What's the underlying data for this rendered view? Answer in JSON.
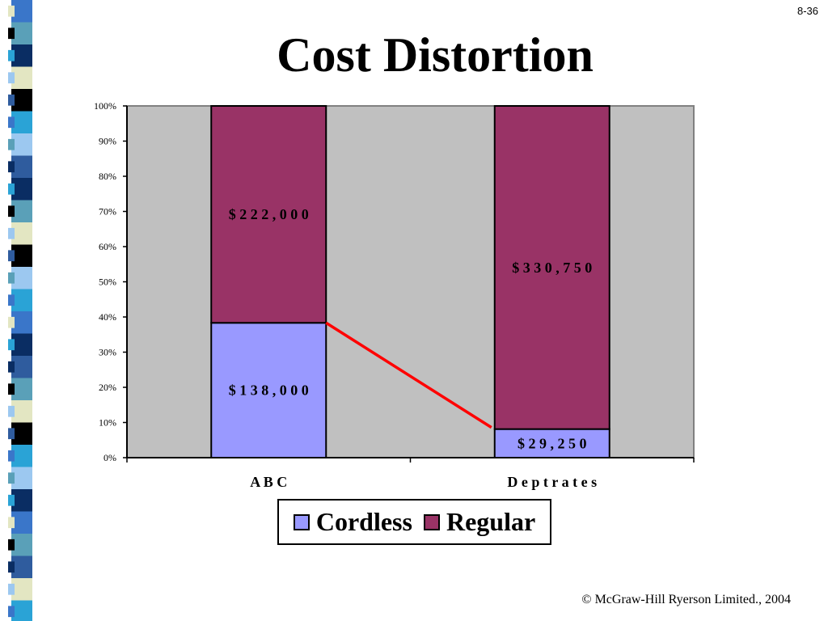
{
  "slide": {
    "number": "8-36",
    "title": "Cost Distortion",
    "footer": "© McGraw-Hill Ryerson Limited., 2004"
  },
  "colors": {
    "plot_background": "#c0c0c0",
    "connector_line": "#ff0000",
    "side_strip": [
      "#3a76c9",
      "#5aa0b8",
      "#0a2d63",
      "#e3e6c2",
      "#000000",
      "#2aa3d6",
      "#9cc8f0",
      "#2f5c9e"
    ]
  },
  "chart_data": {
    "type": "bar",
    "stacked": "percent",
    "categories": [
      "A B C",
      "D e p t   r a t e s"
    ],
    "series": [
      {
        "name": "Cordless",
        "color": "#9999ff",
        "values": [
          138000,
          29250
        ],
        "labels": [
          "$ 1 3 8 , 0 0 0",
          "$ 2 9 , 2 5 0"
        ]
      },
      {
        "name": "Regular",
        "color": "#993366",
        "values": [
          222000,
          330750
        ],
        "labels": [
          "$ 2 2 2 , 0 0 0",
          "$ 3 3 0 , 7 5 0"
        ]
      }
    ],
    "y_ticks": [
      "0%",
      "10%",
      "20%",
      "30%",
      "40%",
      "50%",
      "60%",
      "70%",
      "80%",
      "90%",
      "100%"
    ],
    "ylim": [
      0,
      100
    ],
    "legend": {
      "position": "bottom",
      "entries": [
        "Cordless",
        "Regular"
      ]
    },
    "annotation": {
      "type": "line",
      "from": "top of Cordless segment, A B C",
      "to": "top of Cordless segment, D e p t   r a t e s",
      "color": "#ff0000"
    }
  }
}
